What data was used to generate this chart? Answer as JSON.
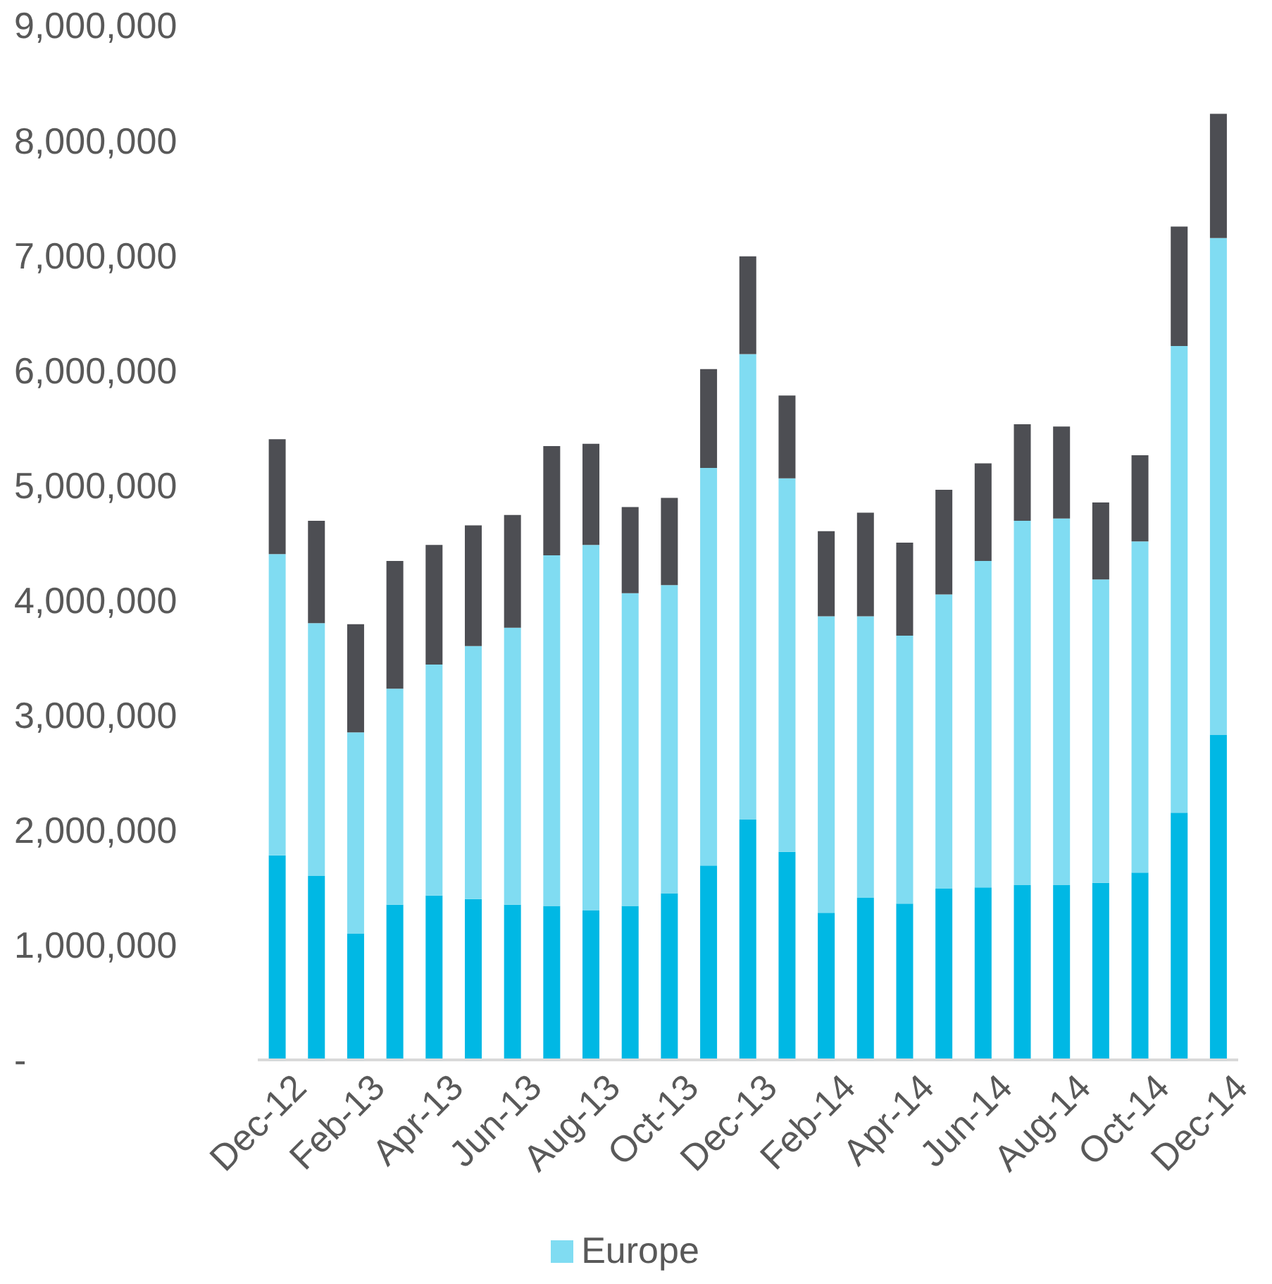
{
  "chart_data": {
    "type": "bar",
    "stacked": true,
    "legend": "bottom",
    "categories": [
      "Dec-12",
      null,
      "Feb-13",
      null,
      "Apr-13",
      null,
      "Jun-13",
      null,
      "Aug-13",
      null,
      "Oct-13",
      null,
      "Dec-13",
      null,
      "Feb-14",
      null,
      "Apr-14",
      null,
      "Jun-14",
      null,
      "Aug-14",
      null,
      "Oct-14",
      null,
      "Dec-14"
    ],
    "ylim": [
      0,
      9000000
    ],
    "yticks": [
      {
        "value": 0,
        "label": "-"
      },
      {
        "value": 1000000,
        "label": "1,000,000"
      },
      {
        "value": 2000000,
        "label": "2,000,000"
      },
      {
        "value": 3000000,
        "label": "3,000,000"
      },
      {
        "value": 4000000,
        "label": "4,000,000"
      },
      {
        "value": 5000000,
        "label": "5,000,000"
      },
      {
        "value": 6000000,
        "label": "6,000,000"
      },
      {
        "value": 7000000,
        "label": "7,000,000"
      },
      {
        "value": 8000000,
        "label": "8,000,000"
      },
      {
        "value": 9000000,
        "label": "9,000,000"
      }
    ],
    "series": [
      {
        "color": "#00b8e4",
        "values": [
          1780000,
          1600000,
          1100000,
          1350000,
          1430000,
          1400000,
          1350000,
          1340000,
          1300000,
          1340000,
          1450000,
          1690000,
          2090000,
          1810000,
          1280000,
          1410000,
          1360000,
          1490000,
          1500000,
          1520000,
          1520000,
          1540000,
          1630000,
          2150000,
          2830000
        ]
      },
      {
        "name": "Europe",
        "color": "#80dcf2",
        "values": [
          2620000,
          2200000,
          1750000,
          1880000,
          2010000,
          2200000,
          2410000,
          3050000,
          3180000,
          2720000,
          2680000,
          3460000,
          4050000,
          3250000,
          2580000,
          2450000,
          2330000,
          2560000,
          2840000,
          3170000,
          3190000,
          2640000,
          2880000,
          4060000,
          4320000
        ]
      },
      {
        "color": "#4d4e53",
        "values": [
          1000000,
          890000,
          940000,
          1110000,
          1040000,
          1050000,
          980000,
          950000,
          880000,
          750000,
          760000,
          860000,
          850000,
          720000,
          740000,
          900000,
          810000,
          910000,
          850000,
          840000,
          800000,
          670000,
          750000,
          1040000,
          1080000
        ]
      }
    ]
  }
}
